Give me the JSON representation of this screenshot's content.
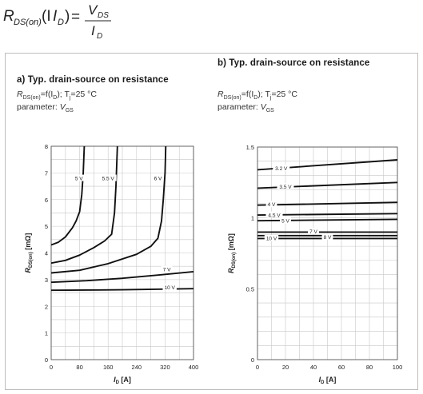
{
  "formula": {
    "lhs_symbol": "R",
    "lhs_sub": "DS(on)",
    "lhs_arg": "(I",
    "lhs_arg_sub": "D",
    "lhs_arg_close": ")",
    "equals": "=",
    "num": "V",
    "num_sub": "DS",
    "den": "I",
    "den_sub": "D"
  },
  "panels": {
    "a": {
      "title": "a) Typ. drain-source on resistance",
      "cond_pre": "R",
      "cond_sub": "DS(on)",
      "cond_mid": "=f(I",
      "cond_sub2": "D",
      "cond_mid2": "); T",
      "cond_sub3": "j",
      "cond_post": "=25 °C",
      "param_label": "parameter: ",
      "param_sym": "V",
      "param_sub": "GS"
    },
    "b": {
      "title": "b) Typ. drain-source on resistance",
      "cond_pre": "R",
      "cond_sub": "DS(on)",
      "cond_mid": "=f(I",
      "cond_sub2": "D",
      "cond_mid2": "); T",
      "cond_sub3": "j",
      "cond_post": "=25 °C",
      "param_label": "parameter: ",
      "param_sym": "V",
      "param_sub": "GS"
    }
  },
  "chart_data": [
    {
      "type": "line",
      "xlabel": "I",
      "xlabel_sub": "D",
      "xlabel_unit": " [A]",
      "ylabel": "R",
      "ylabel_sub": "DS(on)",
      "ylabel_unit": " [mΩ]",
      "xlim": [
        0,
        400
      ],
      "ylim": [
        0,
        8
      ],
      "xticks": [
        0,
        80,
        160,
        240,
        320,
        400
      ],
      "yticks": [
        0,
        1,
        2,
        3,
        4,
        5,
        6,
        7,
        8
      ],
      "grid": true,
      "series": [
        {
          "name": "5 V",
          "points": [
            [
              0,
              4.3
            ],
            [
              20,
              4.4
            ],
            [
              40,
              4.6
            ],
            [
              60,
              4.95
            ],
            [
              70,
              5.2
            ],
            [
              80,
              5.55
            ],
            [
              86,
              6.2
            ],
            [
              90,
              7.0
            ],
            [
              93,
              8.0
            ]
          ]
        },
        {
          "name": "5.5 V",
          "points": [
            [
              0,
              3.62
            ],
            [
              40,
              3.72
            ],
            [
              80,
              3.92
            ],
            [
              120,
              4.2
            ],
            [
              150,
              4.45
            ],
            [
              170,
              4.7
            ],
            [
              178,
              5.5
            ],
            [
              182,
              6.5
            ],
            [
              186,
              8.0
            ]
          ]
        },
        {
          "name": "6 V",
          "points": [
            [
              0,
              3.25
            ],
            [
              80,
              3.35
            ],
            [
              160,
              3.6
            ],
            [
              240,
              3.95
            ],
            [
              280,
              4.25
            ],
            [
              300,
              4.55
            ],
            [
              310,
              5.2
            ],
            [
              315,
              6.0
            ],
            [
              320,
              7.0
            ],
            [
              322,
              8.0
            ]
          ]
        },
        {
          "name": "7 V",
          "points": [
            [
              0,
              2.9
            ],
            [
              100,
              2.96
            ],
            [
              200,
              3.05
            ],
            [
              300,
              3.17
            ],
            [
              400,
              3.3
            ]
          ]
        },
        {
          "name": "10 V",
          "points": [
            [
              0,
              2.6
            ],
            [
              200,
              2.62
            ],
            [
              400,
              2.66
            ]
          ]
        }
      ],
      "labels": [
        {
          "text": "5 V",
          "x": 78,
          "y": 6.8
        },
        {
          "text": "5.5 V",
          "x": 160,
          "y": 6.8
        },
        {
          "text": "6 V",
          "x": 300,
          "y": 6.8
        },
        {
          "text": "7 V",
          "x": 325,
          "y": 3.38
        },
        {
          "text": "10 V",
          "x": 333,
          "y": 2.7
        }
      ]
    },
    {
      "type": "line",
      "xlabel": "I",
      "xlabel_sub": "D",
      "xlabel_unit": " [A]",
      "ylabel": "R",
      "ylabel_sub": "DS(on)",
      "ylabel_unit": " [mΩ]",
      "xlim": [
        0,
        100
      ],
      "ylim": [
        0,
        1.5
      ],
      "xticks": [
        0,
        20,
        40,
        60,
        80,
        100
      ],
      "yticks": [
        0,
        0.5,
        1,
        1.5
      ],
      "ytick_labels": [
        "0",
        "0.5",
        "1",
        "1.5"
      ],
      "grid": true,
      "series": [
        {
          "name": "3.2 V",
          "points": [
            [
              0,
              1.34
            ],
            [
              100,
              1.41
            ]
          ]
        },
        {
          "name": "3.5 V",
          "points": [
            [
              0,
              1.21
            ],
            [
              100,
              1.25
            ]
          ]
        },
        {
          "name": "4 V",
          "points": [
            [
              0,
              1.09
            ],
            [
              100,
              1.11
            ]
          ]
        },
        {
          "name": "4.5 V",
          "points": [
            [
              0,
              1.02
            ],
            [
              100,
              1.03
            ]
          ]
        },
        {
          "name": "5 V",
          "points": [
            [
              0,
              0.98
            ],
            [
              100,
              0.99
            ]
          ]
        },
        {
          "name": "7 V",
          "points": [
            [
              0,
              0.9
            ],
            [
              100,
              0.9
            ]
          ]
        },
        {
          "name": "8 V",
          "points": [
            [
              0,
              0.875
            ],
            [
              100,
              0.875
            ]
          ]
        },
        {
          "name": "10 V",
          "points": [
            [
              0,
              0.855
            ],
            [
              100,
              0.855
            ]
          ]
        }
      ],
      "labels": [
        {
          "text": "3.2 V",
          "x": 17,
          "y": 1.35
        },
        {
          "text": "3.5 V",
          "x": 20,
          "y": 1.22
        },
        {
          "text": "4 V",
          "x": 10,
          "y": 1.095
        },
        {
          "text": "4.5 V",
          "x": 12,
          "y": 1.02
        },
        {
          "text": "5 V",
          "x": 20,
          "y": 0.98
        },
        {
          "text": "7 V",
          "x": 40,
          "y": 0.905
        },
        {
          "text": "8 V",
          "x": 50,
          "y": 0.865
        },
        {
          "text": "10 V",
          "x": 10,
          "y": 0.855
        }
      ]
    }
  ]
}
